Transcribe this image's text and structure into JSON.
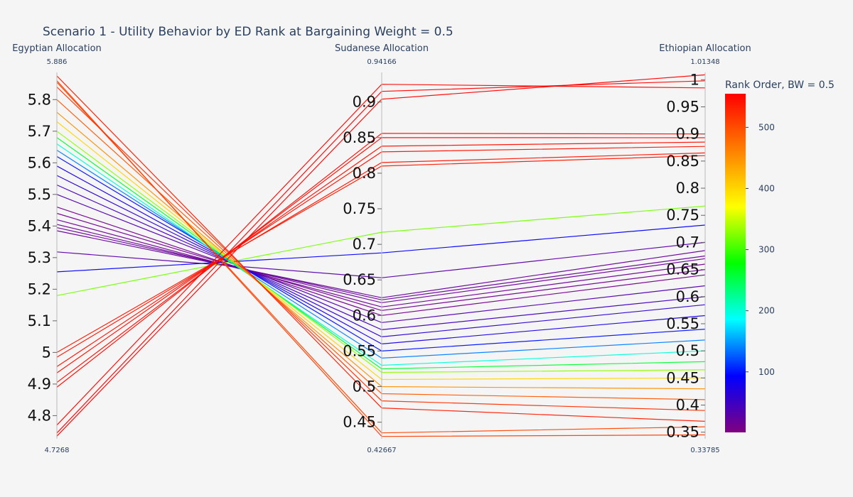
{
  "chart_data": {
    "type": "parallel-coordinates",
    "title": "Scenario 1 - Utility Behavior by ED Rank at Bargaining Weight = 0.5",
    "axes": [
      {
        "label": "Egyptian Allocation",
        "range": [
          4.7268,
          5.886
        ],
        "range_min_label": "4.7268",
        "range_max_label": "5.886",
        "ticks": [
          4.8,
          4.9,
          5.0,
          5.1,
          5.2,
          5.3,
          5.4,
          5.5,
          5.6,
          5.7,
          5.8
        ],
        "tick_labels": [
          "4.8",
          "4.9",
          "5",
          "5.1",
          "5.2",
          "5.3",
          "5.4",
          "5.5",
          "5.6",
          "5.7",
          "5.8"
        ]
      },
      {
        "label": "Sudanese Allocation",
        "range": [
          0.42667,
          0.94166
        ],
        "range_min_label": "0.42667",
        "range_max_label": "0.94166",
        "ticks": [
          0.45,
          0.5,
          0.55,
          0.6,
          0.65,
          0.7,
          0.75,
          0.8,
          0.85,
          0.9
        ],
        "tick_labels": [
          "0.45",
          "0.5",
          "0.55",
          "0.6",
          "0.65",
          "0.7",
          "0.75",
          "0.8",
          "0.85",
          "0.9"
        ]
      },
      {
        "label": "Ethiopian Allocation",
        "range": [
          0.33785,
          1.01348
        ],
        "range_min_label": "0.33785",
        "range_max_label": "1.01348",
        "ticks": [
          0.35,
          0.4,
          0.45,
          0.5,
          0.55,
          0.6,
          0.65,
          0.7,
          0.75,
          0.8,
          0.85,
          0.9,
          0.95,
          1.0
        ],
        "tick_labels": [
          "0.35",
          "0.4",
          "0.45",
          "0.5",
          "0.55",
          "0.6",
          "0.65",
          "0.7",
          "0.75",
          "0.8",
          "0.85",
          "0.9",
          "0.95",
          "1"
        ]
      }
    ],
    "colorbar": {
      "title": "Rank Order, BW = 0.5",
      "range": [
        1,
        555
      ],
      "ticks": [
        100,
        200,
        300,
        400,
        500
      ],
      "tick_labels": [
        "100",
        "200",
        "300",
        "400",
        "500"
      ],
      "colorscale": [
        "#800080",
        "#0000ff",
        "#00ffff",
        "#00ff00",
        "#ffff00",
        "#ff8000",
        "#ff0000"
      ]
    },
    "lines": [
      {
        "rank": 555,
        "values": [
          4.735,
          0.904,
          1.009
        ]
      },
      {
        "rank": 553,
        "values": [
          4.745,
          0.915,
          0.998
        ]
      },
      {
        "rank": 551,
        "values": [
          4.77,
          0.925,
          0.985
        ]
      },
      {
        "rank": 548,
        "values": [
          4.89,
          0.856,
          0.9
        ]
      },
      {
        "rank": 546,
        "values": [
          4.905,
          0.85,
          0.893
        ]
      },
      {
        "rank": 544,
        "values": [
          4.935,
          0.838,
          0.885
        ]
      },
      {
        "rank": 542,
        "values": [
          4.955,
          0.83,
          0.877
        ]
      },
      {
        "rank": 540,
        "values": [
          4.985,
          0.815,
          0.865
        ]
      },
      {
        "rank": 538,
        "values": [
          5.0,
          0.81,
          0.86
        ]
      },
      {
        "rank": 320,
        "values": [
          5.18,
          0.717,
          0.767
        ]
      },
      {
        "rank": 90,
        "values": [
          5.255,
          0.688,
          0.732
        ]
      },
      {
        "rank": 30,
        "values": [
          5.318,
          0.653,
          0.7
        ]
      },
      {
        "rank": 20,
        "values": [
          5.385,
          0.625,
          0.685
        ]
      },
      {
        "rank": 18,
        "values": [
          5.395,
          0.622,
          0.675
        ]
      },
      {
        "rank": 16,
        "values": [
          5.405,
          0.618,
          0.67
        ]
      },
      {
        "rank": 14,
        "values": [
          5.42,
          0.612,
          0.66
        ]
      },
      {
        "rank": 12,
        "values": [
          5.44,
          0.607,
          0.65
        ]
      },
      {
        "rank": 10,
        "values": [
          5.46,
          0.6,
          0.64
        ]
      },
      {
        "rank": 35,
        "values": [
          5.5,
          0.59,
          0.62
        ]
      },
      {
        "rank": 45,
        "values": [
          5.53,
          0.58,
          0.6
        ]
      },
      {
        "rank": 60,
        "values": [
          5.56,
          0.57,
          0.585
        ]
      },
      {
        "rank": 75,
        "values": [
          5.59,
          0.56,
          0.565
        ]
      },
      {
        "rank": 100,
        "values": [
          5.62,
          0.55,
          0.54
        ]
      },
      {
        "rank": 140,
        "values": [
          5.64,
          0.54,
          0.52
        ]
      },
      {
        "rank": 200,
        "values": [
          5.66,
          0.53,
          0.5
        ]
      },
      {
        "rank": 260,
        "values": [
          5.68,
          0.525,
          0.48
        ]
      },
      {
        "rank": 330,
        "values": [
          5.7,
          0.52,
          0.465
        ]
      },
      {
        "rank": 400,
        "values": [
          5.73,
          0.51,
          0.45
        ]
      },
      {
        "rank": 450,
        "values": [
          5.76,
          0.5,
          0.43
        ]
      },
      {
        "rank": 490,
        "values": [
          5.8,
          0.49,
          0.41
        ]
      },
      {
        "rank": 520,
        "values": [
          5.84,
          0.48,
          0.39
        ]
      },
      {
        "rank": 535,
        "values": [
          5.875,
          0.47,
          0.37
        ]
      },
      {
        "rank": 510,
        "values": [
          5.86,
          0.43,
          0.345
        ]
      },
      {
        "rank": 505,
        "values": [
          5.855,
          0.435,
          0.36
        ]
      }
    ]
  }
}
